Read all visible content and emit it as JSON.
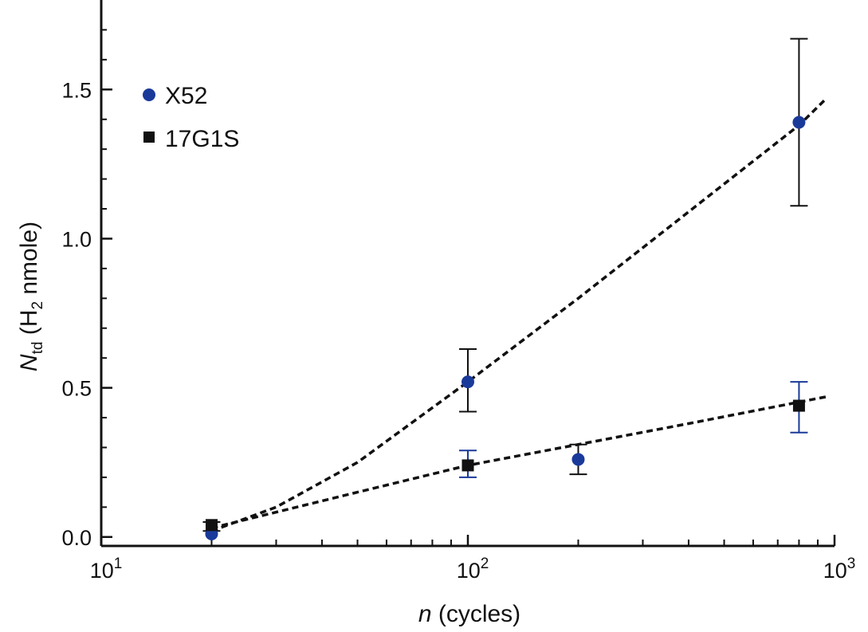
{
  "chart_data": {
    "type": "scatter",
    "title": "",
    "x_scale": "log",
    "xlim": [
      10,
      1000
    ],
    "ylim": [
      -0.03,
      1.8
    ],
    "grid": false,
    "legend_position": "top-left",
    "x_ticks": [
      {
        "value": 10,
        "base": "10",
        "exp": "1"
      },
      {
        "value": 100,
        "base": "10",
        "exp": "2"
      },
      {
        "value": 1000,
        "base": "10",
        "exp": "3"
      }
    ],
    "y_ticks": [
      {
        "value": 0.0,
        "label": "0.0"
      },
      {
        "value": 0.5,
        "label": "0.5"
      },
      {
        "value": 1.0,
        "label": "1.0"
      },
      {
        "value": 1.5,
        "label": "1.5"
      }
    ],
    "xlabel": {
      "main": "n",
      "rest": " (cycles)"
    },
    "ylabel": {
      "main": "N",
      "sub": "td",
      "mid": " (H",
      "sub2": "2",
      "end": " nmole)"
    },
    "series": [
      {
        "name": "X52",
        "marker": "circle",
        "color": "#1a3a9a",
        "errorbar_color": "#111111",
        "points": [
          {
            "x": 20,
            "y": 0.01,
            "err_low": null,
            "err_high": null
          },
          {
            "x": 100,
            "y": 0.52,
            "err_low": 0.42,
            "err_high": 0.63
          },
          {
            "x": 200,
            "y": 0.26,
            "err_low": null,
            "err_high": null
          },
          {
            "x": 800,
            "y": 1.39,
            "err_low": 1.11,
            "err_high": 1.67
          }
        ],
        "fit": {
          "style": "dashed",
          "color": "#111111",
          "x": [
            20,
            30,
            50,
            100,
            200,
            400,
            800,
            950
          ],
          "y": [
            0.02,
            0.1,
            0.25,
            0.52,
            0.8,
            1.09,
            1.38,
            1.47
          ]
        }
      },
      {
        "name": "17G1S",
        "marker": "square",
        "color": "#111111",
        "errorbar_color": "#1a3a9a",
        "points": [
          {
            "x": 20,
            "y": 0.04,
            "err_low": null,
            "err_high": null
          },
          {
            "x": 100,
            "y": 0.24,
            "err_low": 0.2,
            "err_high": 0.29
          },
          {
            "x": 800,
            "y": 0.44,
            "err_low": 0.35,
            "err_high": 0.52
          }
        ],
        "fit": {
          "style": "dashed",
          "color": "#111111",
          "x": [
            20,
            50,
            100,
            200,
            400,
            950
          ],
          "y": [
            0.03,
            0.15,
            0.24,
            0.31,
            0.38,
            0.47
          ]
        }
      }
    ],
    "extra_errorbars": [
      {
        "x": 20,
        "y_low": 0.02,
        "y_high": 0.05,
        "color": "#111111"
      },
      {
        "x": 200,
        "y_low": 0.21,
        "y_high": 0.31,
        "color": "#111111"
      }
    ]
  }
}
